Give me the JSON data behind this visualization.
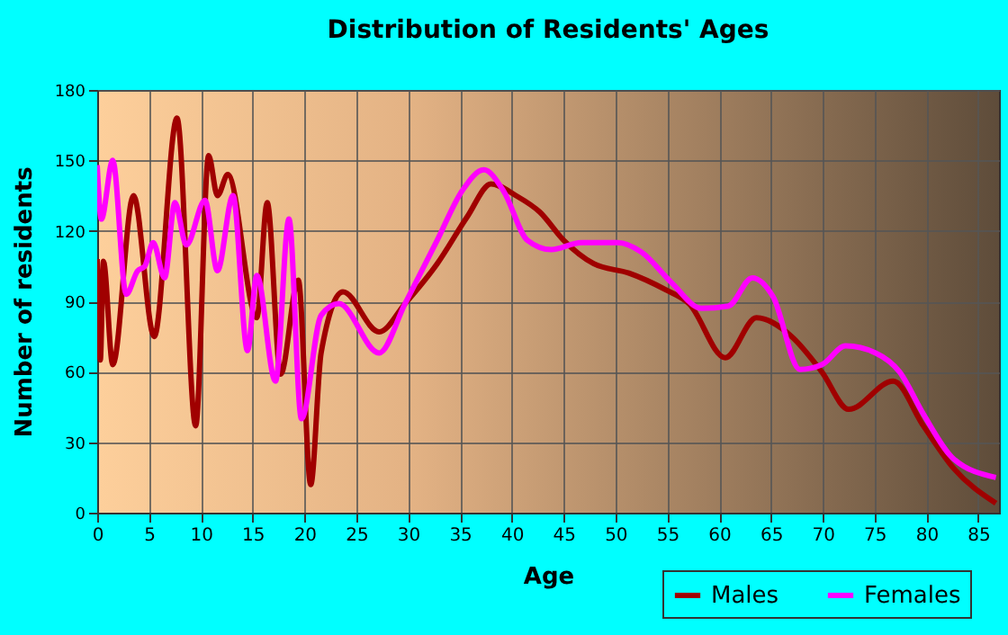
{
  "chart_data": {
    "type": "line",
    "title": "Distribution of Residents' Ages",
    "xlabel": "Age",
    "ylabel": "Number of residents",
    "xlim": [
      0,
      87
    ],
    "xticks": [
      0,
      5,
      10,
      15,
      20,
      25,
      30,
      35,
      40,
      45,
      50,
      55,
      60,
      65,
      70,
      75,
      80,
      85
    ],
    "ylim": [
      0,
      180
    ],
    "yticks": [
      0,
      30,
      60,
      90,
      120,
      150,
      180
    ],
    "grid": true,
    "legend": "bottom right",
    "marker": "none",
    "line_style": "solid",
    "series": [
      {
        "name": "Males",
        "color": "#a00000",
        "x": [
          0,
          0.3,
          0.6,
          1.5,
          3.5,
          5.5,
          7.7,
          9.5,
          10.75,
          11.6,
          12.6,
          15.4,
          16.4,
          17.7,
          19.4,
          20.6,
          21.6,
          23.7,
          27.2,
          29.7,
          32.8,
          35.7,
          38.0,
          40.4,
          42.7,
          45.0,
          47.9,
          51.3,
          54.8,
          57.1,
          60.6,
          63.6,
          67.0,
          69.9,
          72.5,
          76.8,
          79.7,
          82.6,
          86.7
        ],
        "values": [
          108,
          65,
          107,
          63,
          135,
          75,
          168,
          37,
          152,
          135,
          144,
          83,
          132,
          59,
          99,
          12,
          68,
          94,
          77,
          89,
          106,
          126,
          140,
          135,
          128,
          116,
          106,
          102,
          95,
          89,
          66,
          83,
          75,
          60,
          44,
          56,
          37,
          19,
          4
        ]
      },
      {
        "name": "Females",
        "color": "#ff00ff",
        "x": [
          0,
          0.4,
          1.5,
          2.8,
          3.9,
          4.6,
          5.4,
          6.5,
          7.5,
          8.6,
          10.4,
          11.6,
          13.1,
          14.5,
          15.4,
          17.2,
          18.5,
          19.7,
          21.6,
          23.3,
          27.2,
          29.7,
          32.8,
          35.2,
          37.3,
          39.2,
          41.5,
          43.8,
          46.7,
          50.2,
          52.5,
          55.4,
          58.3,
          60.9,
          63.2,
          65.2,
          67.8,
          69.9,
          72.2,
          75.1,
          77.4,
          79.7,
          82.6,
          86.7
        ],
        "values": [
          148,
          125,
          150,
          93,
          103,
          105,
          115,
          100,
          132,
          114,
          133,
          103,
          135,
          69,
          101,
          56,
          125,
          40,
          84,
          89,
          68,
          89,
          116,
          137,
          146,
          137,
          116,
          112,
          115,
          115,
          111,
          98,
          87,
          88,
          100,
          92,
          61,
          63,
          71,
          68,
          60,
          42,
          23,
          15
        ]
      }
    ]
  }
}
